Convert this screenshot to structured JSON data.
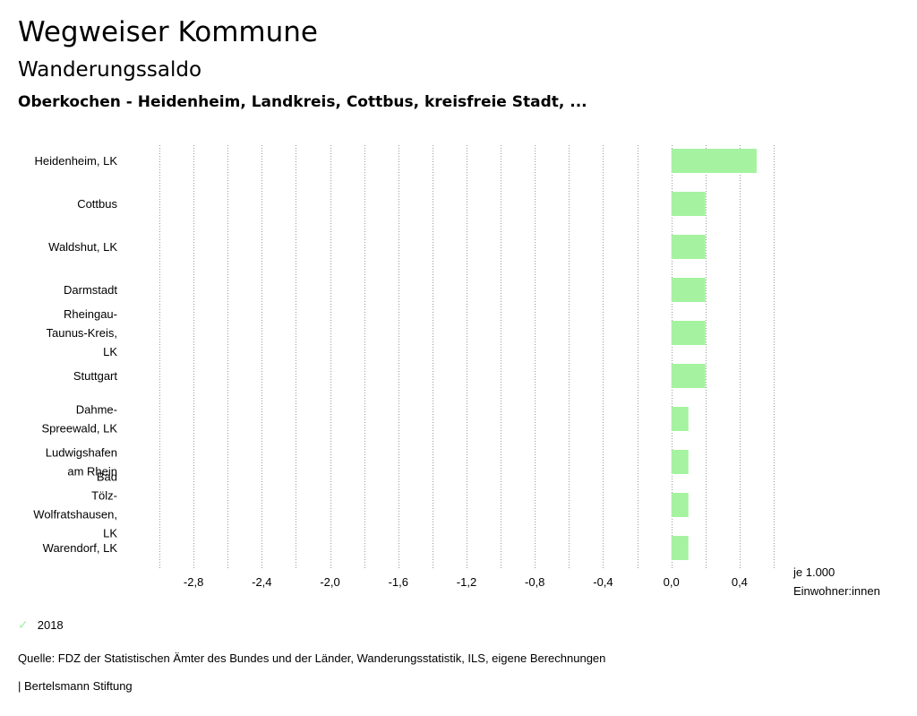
{
  "header": {
    "title": "Wegweiser Kommune",
    "subtitle": "Wanderungssaldo",
    "filter": "Oberkochen - Heidenheim, Landkreis, Cottbus, kreisfreie Stadt, ..."
  },
  "legend": {
    "label": "2018",
    "check_icon": "check-icon",
    "color": "#a5f3a0"
  },
  "footer": {
    "source": "Quelle: FDZ der Statistischen Ämter des Bundes und der Länder, Wanderungsstatistik, ILS, eigene Berechnungen",
    "brand": "| Bertelsmann Stiftung"
  },
  "chart_data": {
    "type": "bar",
    "orientation": "horizontal",
    "categories": [
      [
        "Heidenheim, LK"
      ],
      [
        "Cottbus"
      ],
      [
        "Waldshut, LK"
      ],
      [
        "Darmstadt"
      ],
      [
        "Rheingau-",
        "Taunus-Kreis,",
        "LK"
      ],
      [
        "Stuttgart"
      ],
      [
        "Dahme-",
        "Spreewald, LK"
      ],
      [
        "Ludwigshafen",
        "am Rhein"
      ],
      [
        "Bad",
        "Tölz-",
        "Wolfratshausen,",
        "LK"
      ],
      [
        "Warendorf, LK"
      ]
    ],
    "series": [
      {
        "name": "2018",
        "values": [
          0.5,
          0.2,
          0.2,
          0.2,
          0.2,
          0.2,
          0.1,
          0.1,
          0.1,
          0.1
        ]
      }
    ],
    "xlim": [
      -3.0,
      0.6
    ],
    "xticks": [
      -2.8,
      -2.4,
      -2.0,
      -1.6,
      -1.2,
      -0.8,
      -0.4,
      0.0,
      0.4
    ],
    "xtick_labels": [
      "-2,8",
      "-2,4",
      "-2,0",
      "-1,6",
      "-1,2",
      "-0,8",
      "-0,4",
      "0,0",
      "0,4"
    ],
    "gridlines": [
      -3.0,
      -2.8,
      -2.6,
      -2.4,
      -2.2,
      -2.0,
      -1.8,
      -1.6,
      -1.4,
      -1.2,
      -1.0,
      -0.8,
      -0.6,
      -0.4,
      -0.2,
      0.0,
      0.2,
      0.4,
      0.6
    ],
    "xlabel": [
      "je 1.000",
      "Einwohner:innen"
    ],
    "bar_color": "#a5f3a0",
    "grid": true
  }
}
